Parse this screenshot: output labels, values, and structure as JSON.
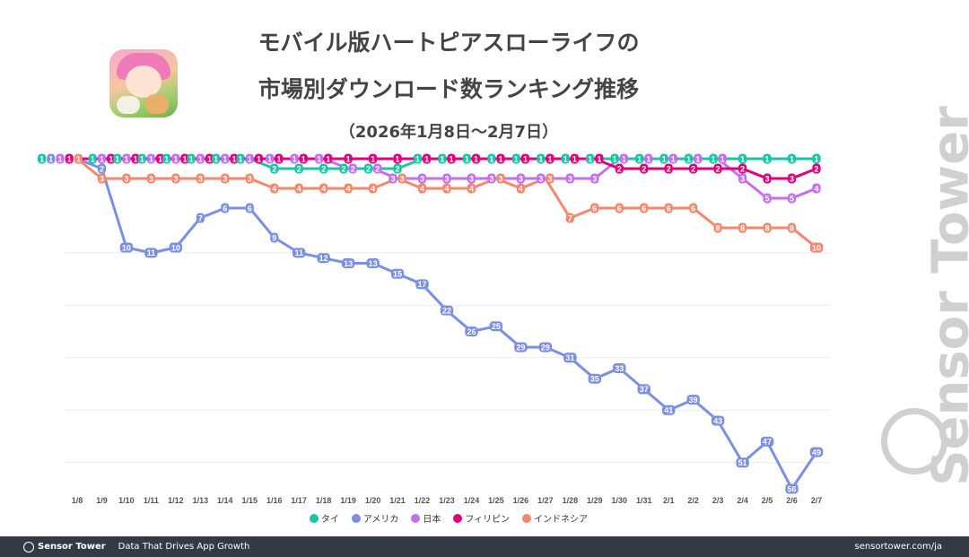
{
  "header": {
    "title_line1": "モバイル版ハートピアスローライフの",
    "title_line2": "市場別ダウンロード数ランキング推移",
    "subtitle": "（2026年1月8日〜2月7日）"
  },
  "watermark": "Sensor Tower",
  "footer": {
    "brand": "Sensor Tower",
    "tagline": "Data That Drives App Growth",
    "url": "sensortower.com/ja"
  },
  "chart_data": {
    "type": "line",
    "title": "モバイル版ハートピアスローライフの市場別ダウンロード数ランキング推移",
    "y_inverted": true,
    "ylim": [
      1,
      56
    ],
    "grid": true,
    "legend_position": "bottom",
    "categories": [
      "1/8",
      "1/9",
      "1/10",
      "1/11",
      "1/12",
      "1/13",
      "1/14",
      "1/15",
      "1/16",
      "1/17",
      "1/18",
      "1/19",
      "1/20",
      "1/21",
      "1/22",
      "1/23",
      "1/24",
      "1/25",
      "1/26",
      "1/27",
      "1/28",
      "1/29",
      "1/30",
      "1/31",
      "2/1",
      "2/2",
      "2/3",
      "2/4",
      "2/5",
      "2/6",
      "2/7"
    ],
    "series": [
      {
        "name": "タイ",
        "color": "#1cc4a6",
        "values": [
          1,
          1,
          1,
          1,
          1,
          1,
          1,
          1,
          2,
          2,
          2,
          2,
          2,
          2,
          1,
          1,
          1,
          1,
          1,
          1,
          1,
          1,
          1,
          1,
          1,
          1,
          1,
          1,
          1,
          1,
          1
        ]
      },
      {
        "name": "アメリカ",
        "color": "#7b8fe3",
        "values": [
          1,
          2,
          10,
          11,
          10,
          7,
          6,
          6,
          9,
          11,
          12,
          13,
          13,
          15,
          17,
          22,
          26,
          25,
          29,
          29,
          31,
          35,
          33,
          37,
          41,
          39,
          43,
          51,
          47,
          56,
          49
        ]
      },
      {
        "name": "日本",
        "color": "#c46ef0",
        "values": [
          1,
          1,
          1,
          1,
          1,
          1,
          1,
          1,
          1,
          1,
          1,
          2,
          2,
          3,
          3,
          3,
          3,
          3,
          3,
          3,
          3,
          3,
          1,
          1,
          1,
          1,
          1,
          3,
          5,
          5,
          4
        ]
      },
      {
        "name": "フィリピン",
        "color": "#e0007a",
        "values": [
          1,
          1,
          1,
          1,
          1,
          1,
          1,
          1,
          1,
          1,
          1,
          1,
          1,
          1,
          1,
          1,
          1,
          1,
          1,
          1,
          1,
          1,
          2,
          2,
          2,
          2,
          2,
          2,
          3,
          3,
          2
        ]
      },
      {
        "name": "インドネシア",
        "color": "#f7876a",
        "values": [
          1,
          3,
          3,
          3,
          3,
          3,
          3,
          3,
          4,
          4,
          4,
          4,
          4,
          3,
          4,
          4,
          4,
          3,
          4,
          3,
          7,
          6,
          6,
          6,
          6,
          6,
          8,
          8,
          8,
          8,
          10
        ]
      }
    ]
  }
}
